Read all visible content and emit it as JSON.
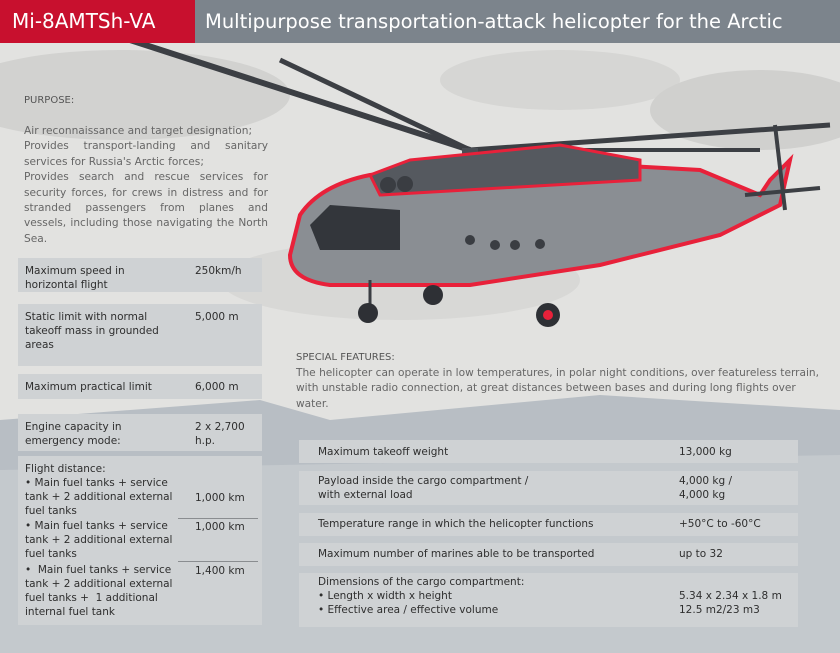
{
  "header": {
    "code": "Mi-8AMTSh-VA",
    "title": "Multipurpose transportation-attack helicopter for the Arctic"
  },
  "purpose": {
    "label": "PURPOSE:",
    "lines": [
      "Air reconnaissance and target designation;",
      "Provides transport-landing and sanitary services for Russia's Arctic forces;",
      "Provides search and rescue services for security forces, for crews in distress and for stranded passengers from planes and vessels, including those navigating the North Sea."
    ]
  },
  "special": {
    "label": "SPECIAL FEATURES:",
    "text": "The helicopter can operate in low temperatures, in polar night conditions, over featureless terrain, with unstable radio connection, at great distances between bases and during long flights over water."
  },
  "left_specs": [
    {
      "label": "Maximum speed in\nhorizontal flight",
      "value": "250km/h"
    },
    {
      "label": "Static limit with normal\ntakeoff mass in grounded\nareas",
      "value": "5,000 m"
    },
    {
      "label": "Maximum practical limit",
      "value": "6,000 m"
    },
    {
      "label": "Engine capacity in\nemergency mode:",
      "value": "2 x 2,700 h.p."
    }
  ],
  "flight_distance": {
    "label": "Flight distance:",
    "items": [
      {
        "label": "• Main fuel tanks + service\ntank + 2 additional external\nfuel tanks",
        "value": "1,000 km"
      },
      {
        "label": "• Main fuel tanks + service\ntank + 2 additional external\nfuel tanks",
        "value": "1,000 km"
      },
      {
        "label": "•  Main fuel tanks + service\ntank + 2 additional external\nfuel tanks +  1 additional\ninternal fuel tank",
        "value": "1,400 km"
      }
    ]
  },
  "right_specs": [
    {
      "label": "Maximum takeoff weight",
      "value": "13,000 kg"
    },
    {
      "label": "Payload inside the cargo compartment /\nwith external load",
      "value": "4,000 kg /\n4,000 kg"
    },
    {
      "label": "Temperature range in which the helicopter functions",
      "value": "+50°C to -60°C"
    },
    {
      "label": "Maximum number of marines able to be transported",
      "value": "up to 32"
    },
    {
      "label": "Dimensions of the cargo compartment:\n• Length x width x height\n• Effective area / effective volume",
      "value": "\n5.34 x 2.34 x 1.8 m\n12.5 m2/23 m3"
    }
  ],
  "colors": {
    "accent": "#c8102e",
    "header_grey": "#7c848c",
    "box": "#cfd2d4"
  }
}
